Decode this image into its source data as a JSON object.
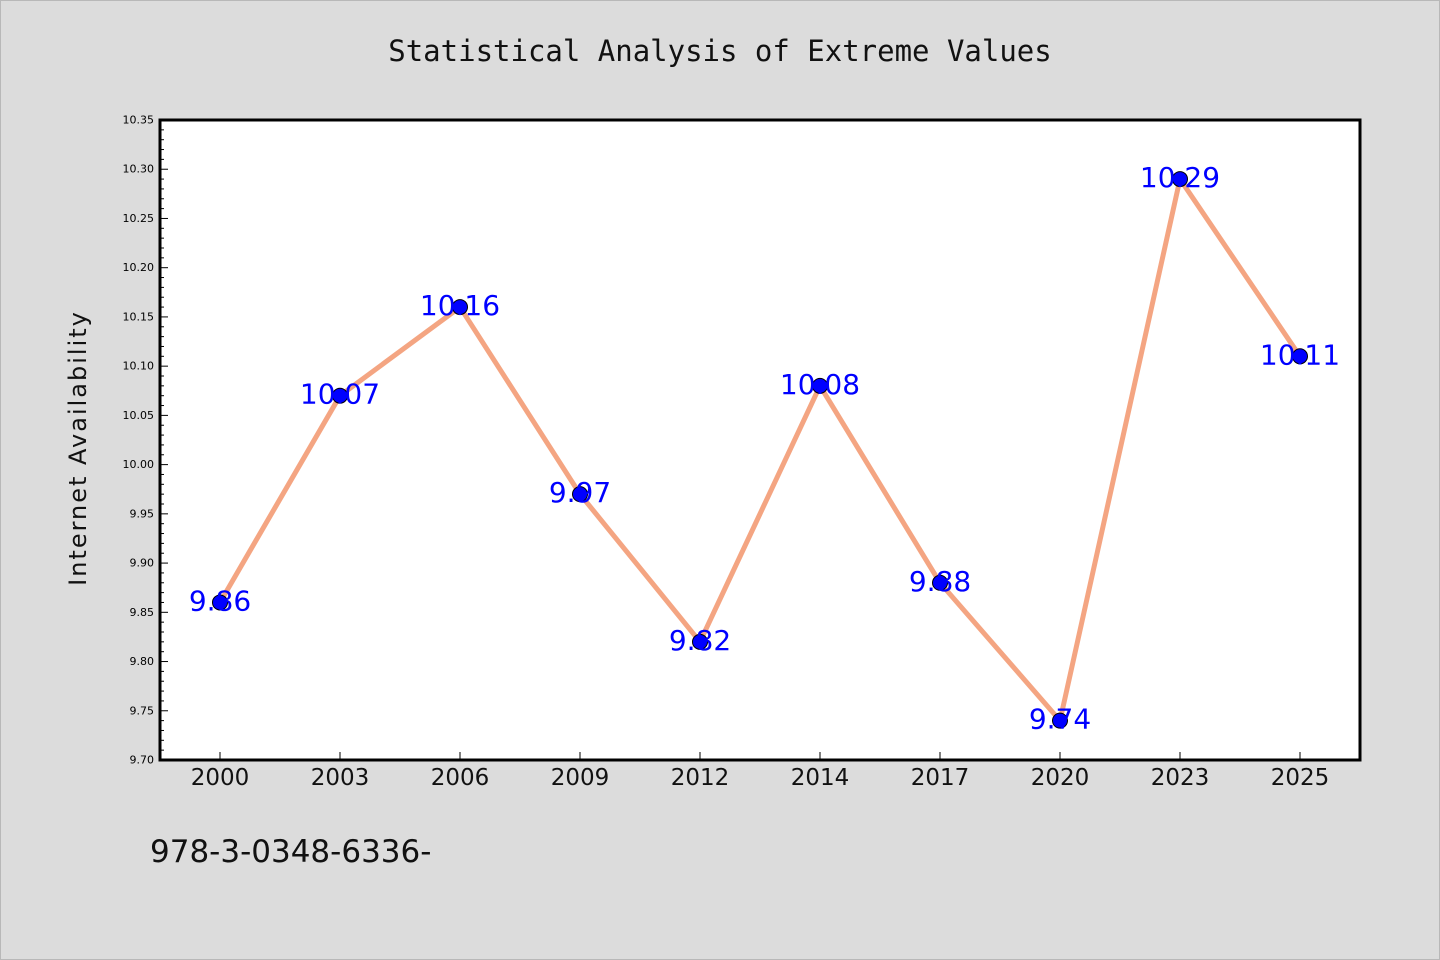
{
  "figure": {
    "footer_text": "978-3-0348-6336-"
  },
  "colors": {
    "background": "#dcdcdc",
    "plot_area": "#ffffff",
    "line": "#f4a582",
    "marker": "#0000ff",
    "label": "#0000ff"
  },
  "chart_data": {
    "type": "line",
    "title": "Statistical Analysis of Extreme Values",
    "xlabel": "",
    "ylabel": "Internet Availability",
    "categories": [
      "2000",
      "2003",
      "2006",
      "2009",
      "2012",
      "2014",
      "2017",
      "2020",
      "2023",
      "2025"
    ],
    "series": [
      {
        "values": [
          9.86,
          10.07,
          10.16,
          9.97,
          9.82,
          10.08,
          9.88,
          9.74,
          10.29,
          10.11
        ],
        "data_labels": [
          "9.86",
          "10.07",
          "10.16",
          "9.97",
          "9.82",
          "10.08",
          "9.88",
          "9.74",
          "10.29",
          "10.11"
        ]
      }
    ],
    "ylim": [
      9.7,
      10.35
    ],
    "yticks": [
      "9.70",
      "9.75",
      "9.80",
      "9.85",
      "9.90",
      "9.95",
      "10.00",
      "10.05",
      "10.10",
      "10.15",
      "10.20",
      "10.25",
      "10.30",
      "10.35"
    ],
    "grid": false,
    "legend": "none"
  }
}
